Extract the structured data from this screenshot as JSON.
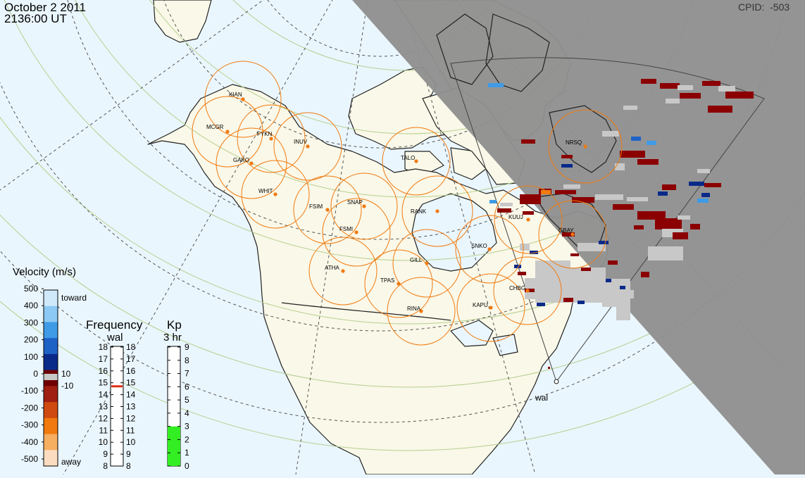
{
  "header": {
    "date": "October  2 2011",
    "time": "2136:00 UT",
    "cpid_label": "CPID:",
    "cpid_value": "-503"
  },
  "colors": {
    "ocean": "#eaf6fd",
    "land": "#faf8e8",
    "night": "#909090",
    "fov_circle": "#f07a10",
    "station_dot": "#f07a10",
    "lat_circle": "#b5cf8f",
    "scatter_gray": "#c8c8c8"
  },
  "stations": [
    {
      "code": "KIAN"
    },
    {
      "code": "MCGR"
    },
    {
      "code": "FYKN"
    },
    {
      "code": "INUV"
    },
    {
      "code": "GAKO"
    },
    {
      "code": "WHIT"
    },
    {
      "code": "FSIM"
    },
    {
      "code": "SNAP"
    },
    {
      "code": "FSMI"
    },
    {
      "code": "TALO"
    },
    {
      "code": "RANK"
    },
    {
      "code": "NRSQ"
    },
    {
      "code": "KUUJ"
    },
    {
      "code": "GBAY"
    },
    {
      "code": "SNKO"
    },
    {
      "code": "GILL"
    },
    {
      "code": "ATHA"
    },
    {
      "code": "TPAS"
    },
    {
      "code": "CHBG"
    },
    {
      "code": "KAPU"
    },
    {
      "code": "RINA"
    }
  ],
  "radar_label": "wal",
  "velocity_scale": {
    "title": "Velocity (m/s)",
    "toward_label": "toward",
    "away_label": "away",
    "ticks": [
      "500",
      "400",
      "300",
      "200",
      "100",
      "0",
      "-100",
      "-200",
      "-300",
      "-400",
      "-500"
    ],
    "gs_upper": "10",
    "gs_lower": "-10",
    "colors": [
      "#cfe9fb",
      "#8cc9f4",
      "#3f9be6",
      "#1f62c6",
      "#0a2a8a",
      "#6f0000",
      "#a01e10",
      "#cf4a10",
      "#f07a10",
      "#f6ae60",
      "#fbdcc0"
    ]
  },
  "frequency_scale": {
    "title": "Frequency",
    "subtitle": "wal",
    "ticks": [
      "18",
      "17",
      "16",
      "15",
      "14",
      "13",
      "12",
      "11",
      "10",
      "9",
      "8"
    ],
    "current_mhz": 14.7,
    "marker_color": "#e03010"
  },
  "kp_scale": {
    "title": "Kp",
    "subtitle": "3 hr",
    "ticks": [
      "9",
      "8",
      "7",
      "6",
      "5",
      "4",
      "3",
      "2",
      "1",
      "0"
    ],
    "value": 3,
    "fill_color": "#33ee22"
  }
}
